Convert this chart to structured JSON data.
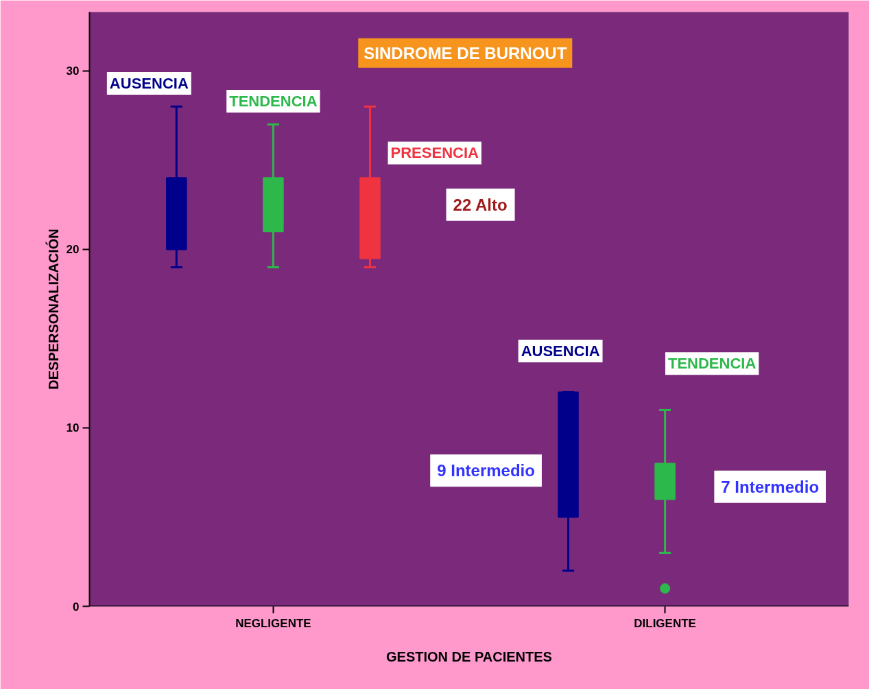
{
  "chart_data": {
    "type": "box",
    "legend_title": "SINDROME DE BURNOUT",
    "xlabel": "GESTION DE PACIENTES",
    "ylabel": "DESPERSONALIZACIÓN",
    "categories": [
      "NEGLIGENTE",
      "DILIGENTE"
    ],
    "ylim": [
      0,
      33.3
    ],
    "yticks": [
      0,
      10,
      20,
      30
    ],
    "grid": false,
    "series": [
      {
        "name": "AUSENCIA",
        "color": "#00008b",
        "boxes": [
          {
            "low": 19,
            "q1": 20,
            "q3": 24,
            "high": 28
          },
          {
            "low": 2,
            "q1": 5,
            "q3": 12,
            "high": 12
          }
        ]
      },
      {
        "name": "TENDENCIA",
        "color": "#2db84b",
        "boxes": [
          {
            "low": 19,
            "q1": 21,
            "q3": 24,
            "high": 27
          },
          {
            "low": 3,
            "q1": 6,
            "q3": 8,
            "high": 11,
            "outliers": [
              1
            ]
          }
        ]
      },
      {
        "name": "PRESENCIA",
        "color": "#ef3340",
        "boxes": [
          {
            "low": 19,
            "q1": 19.5,
            "q3": 24,
            "high": 28
          },
          null
        ]
      }
    ],
    "annotations": [
      "22 Alto",
      "9 Intermedio",
      "7 Intermedio"
    ]
  }
}
